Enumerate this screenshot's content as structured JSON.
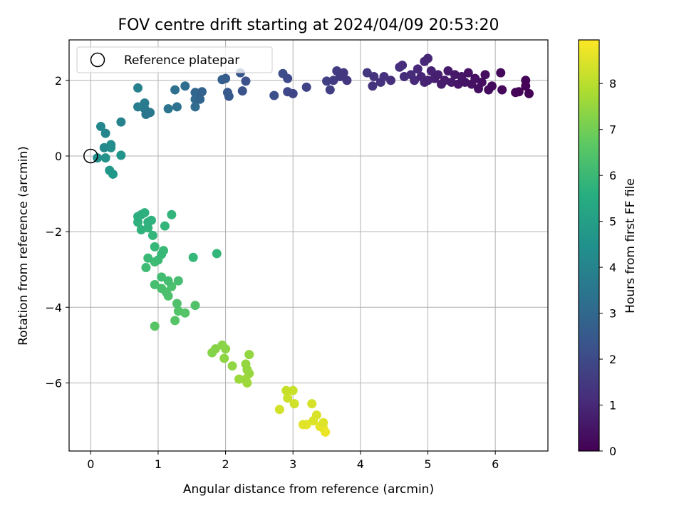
{
  "chart_data": {
    "type": "scatter",
    "title": "FOV centre drift starting at 2024/04/09 20:53:20",
    "xlabel": "Angular distance from reference (arcmin)",
    "ylabel": "Rotation from reference (arcmin)",
    "xlim": [
      -0.32,
      6.78
    ],
    "ylim": [
      -7.8,
      3.07
    ],
    "xticks": [
      0,
      1,
      2,
      3,
      4,
      5,
      6
    ],
    "yticks": [
      -6,
      -4,
      -2,
      0,
      2
    ],
    "grid": true,
    "legend": {
      "placement": "top-left",
      "entries": [
        "Reference platepar"
      ]
    },
    "reference_point": {
      "x": 0,
      "y": 0,
      "label": "Reference platepar"
    },
    "colorbar": {
      "label": "Hours from first FF file",
      "colormap": "viridis",
      "range": [
        0,
        8.95
      ],
      "ticks": [
        0,
        1,
        2,
        3,
        4,
        5,
        6,
        7,
        8
      ]
    },
    "points": [
      {
        "x": 6.5,
        "y": 1.65,
        "h": 0.02
      },
      {
        "x": 6.45,
        "y": 1.85,
        "h": 0.05
      },
      {
        "x": 6.45,
        "y": 2.0,
        "h": 0.08
      },
      {
        "x": 6.35,
        "y": 1.7,
        "h": 0.1
      },
      {
        "x": 6.3,
        "y": 1.68,
        "h": 0.14
      },
      {
        "x": 6.1,
        "y": 1.75,
        "h": 0.17
      },
      {
        "x": 6.08,
        "y": 2.2,
        "h": 0.2
      },
      {
        "x": 5.95,
        "y": 1.85,
        "h": 0.24
      },
      {
        "x": 5.9,
        "y": 1.75,
        "h": 0.27
      },
      {
        "x": 5.85,
        "y": 2.15,
        "h": 0.3
      },
      {
        "x": 5.8,
        "y": 1.95,
        "h": 0.33
      },
      {
        "x": 5.75,
        "y": 1.78,
        "h": 0.36
      },
      {
        "x": 5.7,
        "y": 2.05,
        "h": 0.4
      },
      {
        "x": 5.65,
        "y": 1.9,
        "h": 0.43
      },
      {
        "x": 5.6,
        "y": 2.2,
        "h": 0.46
      },
      {
        "x": 5.55,
        "y": 1.95,
        "h": 0.5
      },
      {
        "x": 5.5,
        "y": 2.1,
        "h": 0.53
      },
      {
        "x": 5.45,
        "y": 1.9,
        "h": 0.56
      },
      {
        "x": 5.4,
        "y": 2.15,
        "h": 0.6
      },
      {
        "x": 5.35,
        "y": 1.95,
        "h": 0.63
      },
      {
        "x": 5.3,
        "y": 2.25,
        "h": 0.66
      },
      {
        "x": 5.25,
        "y": 2.0,
        "h": 0.7
      },
      {
        "x": 5.2,
        "y": 1.9,
        "h": 0.73
      },
      {
        "x": 5.15,
        "y": 2.15,
        "h": 0.76
      },
      {
        "x": 5.1,
        "y": 2.05,
        "h": 0.8
      },
      {
        "x": 5.05,
        "y": 2.25,
        "h": 0.83
      },
      {
        "x": 5.0,
        "y": 2.0,
        "h": 0.86
      },
      {
        "x": 4.95,
        "y": 1.95,
        "h": 0.9
      },
      {
        "x": 4.9,
        "y": 2.1,
        "h": 0.93
      },
      {
        "x": 5.0,
        "y": 2.58,
        "h": 0.96
      },
      {
        "x": 4.95,
        "y": 2.5,
        "h": 1.0
      },
      {
        "x": 4.85,
        "y": 2.3,
        "h": 1.03
      },
      {
        "x": 4.8,
        "y": 2.0,
        "h": 1.06
      },
      {
        "x": 4.75,
        "y": 2.15,
        "h": 1.1
      },
      {
        "x": 4.65,
        "y": 2.1,
        "h": 1.13
      },
      {
        "x": 4.62,
        "y": 2.4,
        "h": 1.16
      },
      {
        "x": 4.58,
        "y": 2.35,
        "h": 1.2
      },
      {
        "x": 4.45,
        "y": 2.0,
        "h": 1.23
      },
      {
        "x": 4.35,
        "y": 2.1,
        "h": 1.26
      },
      {
        "x": 4.3,
        "y": 1.95,
        "h": 1.3
      },
      {
        "x": 4.2,
        "y": 2.1,
        "h": 1.33
      },
      {
        "x": 4.18,
        "y": 1.85,
        "h": 1.36
      },
      {
        "x": 4.1,
        "y": 2.2,
        "h": 1.4
      },
      {
        "x": 3.8,
        "y": 2.0,
        "h": 1.43
      },
      {
        "x": 3.75,
        "y": 2.2,
        "h": 1.46
      },
      {
        "x": 3.7,
        "y": 2.1,
        "h": 1.5
      },
      {
        "x": 3.65,
        "y": 2.25,
        "h": 1.55
      },
      {
        "x": 3.6,
        "y": 2.0,
        "h": 1.6
      },
      {
        "x": 3.55,
        "y": 1.75,
        "h": 1.65
      },
      {
        "x": 3.5,
        "y": 1.98,
        "h": 1.7
      },
      {
        "x": 3.2,
        "y": 1.82,
        "h": 1.78
      },
      {
        "x": 3.0,
        "y": 1.65,
        "h": 1.85
      },
      {
        "x": 2.92,
        "y": 1.7,
        "h": 1.92
      },
      {
        "x": 2.92,
        "y": 2.05,
        "h": 2.0
      },
      {
        "x": 2.85,
        "y": 2.18,
        "h": 2.08
      },
      {
        "x": 2.72,
        "y": 1.6,
        "h": 2.16
      },
      {
        "x": 2.3,
        "y": 1.98,
        "h": 2.24
      },
      {
        "x": 2.25,
        "y": 1.72,
        "h": 2.32
      },
      {
        "x": 2.22,
        "y": 2.2,
        "h": 2.4
      },
      {
        "x": 2.05,
        "y": 1.58,
        "h": 2.48
      },
      {
        "x": 2.03,
        "y": 1.68,
        "h": 2.56
      },
      {
        "x": 2.0,
        "y": 2.05,
        "h": 2.64
      },
      {
        "x": 1.95,
        "y": 2.02,
        "h": 2.72
      },
      {
        "x": 1.65,
        "y": 1.7,
        "h": 2.8
      },
      {
        "x": 1.62,
        "y": 1.5,
        "h": 2.88
      },
      {
        "x": 1.55,
        "y": 1.68,
        "h": 2.96
      },
      {
        "x": 1.55,
        "y": 1.5,
        "h": 3.04
      },
      {
        "x": 1.55,
        "y": 1.3,
        "h": 3.12
      },
      {
        "x": 1.4,
        "y": 1.85,
        "h": 3.2
      },
      {
        "x": 1.25,
        "y": 1.75,
        "h": 3.28
      },
      {
        "x": 1.28,
        "y": 1.3,
        "h": 3.36
      },
      {
        "x": 1.15,
        "y": 1.25,
        "h": 3.44
      },
      {
        "x": 0.82,
        "y": 1.1,
        "h": 3.52
      },
      {
        "x": 0.88,
        "y": 1.15,
        "h": 3.6
      },
      {
        "x": 0.8,
        "y": 1.25,
        "h": 3.68
      },
      {
        "x": 0.8,
        "y": 1.4,
        "h": 3.76
      },
      {
        "x": 0.7,
        "y": 1.3,
        "h": 3.84
      },
      {
        "x": 0.7,
        "y": 1.8,
        "h": 3.92
      },
      {
        "x": 0.45,
        "y": 0.9,
        "h": 4.0
      },
      {
        "x": 0.22,
        "y": 0.6,
        "h": 4.08
      },
      {
        "x": 0.15,
        "y": 0.78,
        "h": 4.16
      },
      {
        "x": 0.2,
        "y": 0.22,
        "h": 4.24
      },
      {
        "x": 0.3,
        "y": 0.3,
        "h": 4.32
      },
      {
        "x": 0.3,
        "y": 0.22,
        "h": 4.4
      },
      {
        "x": 0.1,
        "y": -0.05,
        "h": 4.48
      },
      {
        "x": 0.22,
        "y": -0.05,
        "h": 4.56
      },
      {
        "x": 0.45,
        "y": 0.02,
        "h": 4.64
      },
      {
        "x": 0.28,
        "y": -0.38,
        "h": 4.72
      },
      {
        "x": 0.33,
        "y": -0.48,
        "h": 4.8
      },
      {
        "x": 0.7,
        "y": -1.6,
        "h": 5.6
      },
      {
        "x": 0.75,
        "y": -1.55,
        "h": 5.63
      },
      {
        "x": 0.8,
        "y": -1.5,
        "h": 5.66
      },
      {
        "x": 0.7,
        "y": -1.75,
        "h": 5.69
      },
      {
        "x": 0.85,
        "y": -1.75,
        "h": 5.72
      },
      {
        "x": 0.75,
        "y": -1.95,
        "h": 5.75
      },
      {
        "x": 0.9,
        "y": -1.7,
        "h": 5.78
      },
      {
        "x": 0.85,
        "y": -1.9,
        "h": 5.81
      },
      {
        "x": 1.2,
        "y": -1.55,
        "h": 5.84
      },
      {
        "x": 0.92,
        "y": -2.1,
        "h": 5.87
      },
      {
        "x": 1.1,
        "y": -1.85,
        "h": 5.9
      },
      {
        "x": 1.87,
        "y": -2.58,
        "h": 5.93
      },
      {
        "x": 1.52,
        "y": -2.68,
        "h": 5.96
      },
      {
        "x": 0.95,
        "y": -2.4,
        "h": 5.99
      },
      {
        "x": 1.05,
        "y": -2.6,
        "h": 6.02
      },
      {
        "x": 1.08,
        "y": -2.5,
        "h": 6.05
      },
      {
        "x": 0.85,
        "y": -2.7,
        "h": 6.08
      },
      {
        "x": 1.0,
        "y": -2.75,
        "h": 6.11
      },
      {
        "x": 0.82,
        "y": -2.95,
        "h": 6.14
      },
      {
        "x": 0.95,
        "y": -2.8,
        "h": 6.17
      },
      {
        "x": 1.05,
        "y": -3.2,
        "h": 6.2
      },
      {
        "x": 1.15,
        "y": -3.3,
        "h": 6.23
      },
      {
        "x": 1.3,
        "y": -3.3,
        "h": 6.26
      },
      {
        "x": 0.95,
        "y": -3.4,
        "h": 6.29
      },
      {
        "x": 1.05,
        "y": -3.5,
        "h": 6.32
      },
      {
        "x": 1.12,
        "y": -3.6,
        "h": 6.35
      },
      {
        "x": 1.2,
        "y": -3.45,
        "h": 6.38
      },
      {
        "x": 1.15,
        "y": -3.7,
        "h": 6.41
      },
      {
        "x": 1.28,
        "y": -3.9,
        "h": 6.44
      },
      {
        "x": 1.55,
        "y": -3.95,
        "h": 6.47
      },
      {
        "x": 1.3,
        "y": -4.1,
        "h": 6.5
      },
      {
        "x": 1.4,
        "y": -4.15,
        "h": 6.53
      },
      {
        "x": 1.25,
        "y": -4.35,
        "h": 6.56
      },
      {
        "x": 0.95,
        "y": -4.5,
        "h": 6.59
      },
      {
        "x": 1.8,
        "y": -5.2,
        "h": 7.3
      },
      {
        "x": 1.85,
        "y": -5.1,
        "h": 7.33
      },
      {
        "x": 1.95,
        "y": -5.0,
        "h": 7.36
      },
      {
        "x": 2.0,
        "y": -5.1,
        "h": 7.39
      },
      {
        "x": 1.98,
        "y": -5.35,
        "h": 7.42
      },
      {
        "x": 2.1,
        "y": -5.55,
        "h": 7.45
      },
      {
        "x": 2.35,
        "y": -5.25,
        "h": 7.48
      },
      {
        "x": 2.3,
        "y": -5.5,
        "h": 7.51
      },
      {
        "x": 2.32,
        "y": -5.65,
        "h": 7.54
      },
      {
        "x": 2.35,
        "y": -5.75,
        "h": 7.57
      },
      {
        "x": 2.2,
        "y": -5.9,
        "h": 7.6
      },
      {
        "x": 2.3,
        "y": -5.9,
        "h": 7.63
      },
      {
        "x": 2.32,
        "y": -6.0,
        "h": 7.66
      },
      {
        "x": 2.9,
        "y": -6.2,
        "h": 8.2
      },
      {
        "x": 3.0,
        "y": -6.2,
        "h": 8.24
      },
      {
        "x": 2.92,
        "y": -6.4,
        "h": 8.28
      },
      {
        "x": 3.02,
        "y": -6.55,
        "h": 8.32
      },
      {
        "x": 2.8,
        "y": -6.7,
        "h": 8.36
      },
      {
        "x": 3.28,
        "y": -6.55,
        "h": 8.4
      },
      {
        "x": 3.35,
        "y": -6.85,
        "h": 8.44
      },
      {
        "x": 3.3,
        "y": -7.0,
        "h": 8.48
      },
      {
        "x": 3.45,
        "y": -7.05,
        "h": 8.52
      },
      {
        "x": 3.15,
        "y": -7.1,
        "h": 8.56
      },
      {
        "x": 3.2,
        "y": -7.1,
        "h": 8.6
      },
      {
        "x": 3.4,
        "y": -7.15,
        "h": 8.64
      },
      {
        "x": 3.45,
        "y": -7.2,
        "h": 8.68
      },
      {
        "x": 3.48,
        "y": -7.3,
        "h": 8.72
      }
    ]
  }
}
